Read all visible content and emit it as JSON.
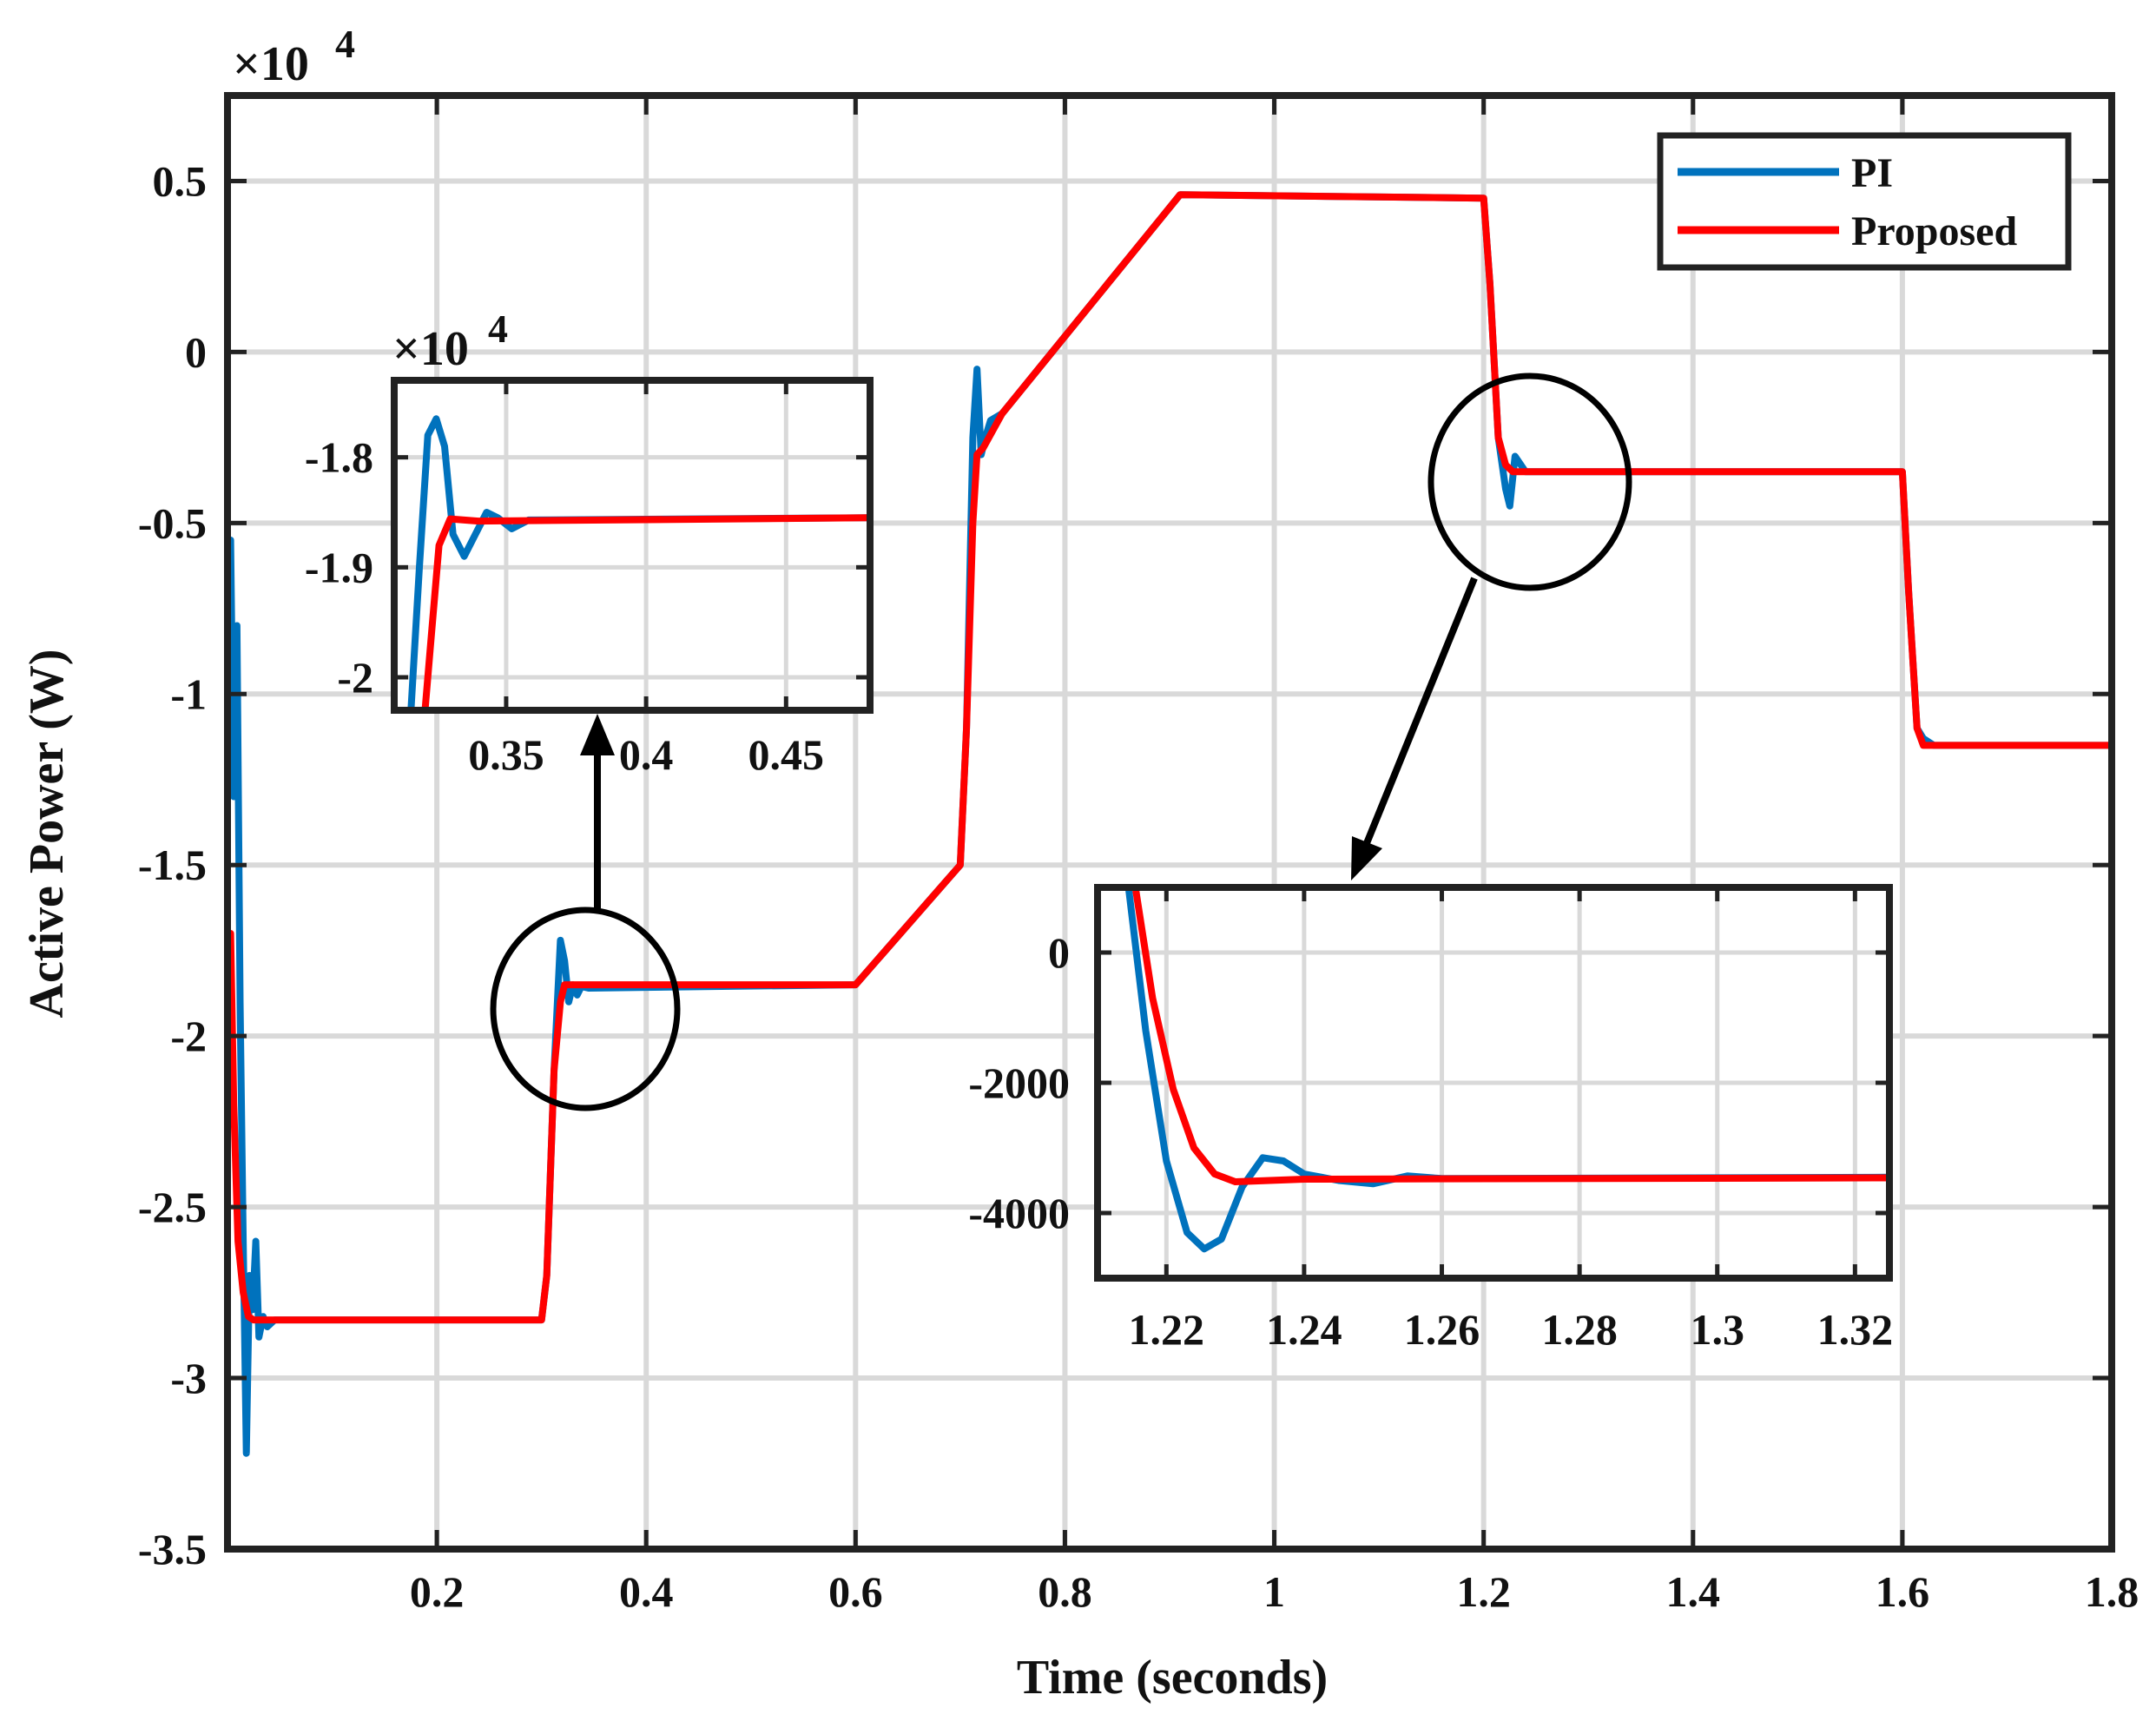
{
  "chart_data": [
    {
      "id": "main",
      "type": "line",
      "xlabel": "Time (seconds)",
      "ylabel": "Active Power (W)",
      "y_multiplier_label": "×10",
      "y_multiplier_exponent": "4",
      "xlim": [
        0.0,
        1.8
      ],
      "ylim": [
        -3.5,
        0.75
      ],
      "xticks": [
        0.2,
        0.4,
        0.6,
        0.8,
        1.0,
        1.2,
        1.4,
        1.6,
        1.8
      ],
      "xtick_labels": [
        "0.2",
        "0.4",
        "0.6",
        "0.8",
        "1",
        "1.2",
        "1.4",
        "1.6",
        "1.8"
      ],
      "yticks": [
        0.5,
        0,
        -0.5,
        -1,
        -1.5,
        -2,
        -2.5,
        -3,
        -3.5
      ],
      "ytick_labels": [
        "0.5",
        "0",
        "-0.5",
        "-1",
        "-1.5",
        "-2",
        "-2.5",
        "-3",
        "-3.5"
      ],
      "grid": true,
      "legend_position": "top-right",
      "series": [
        {
          "name": "PI",
          "color": "#0072BD",
          "points": [
            [
              0.003,
              -0.55
            ],
            [
              0.006,
              -1.3
            ],
            [
              0.009,
              -0.8
            ],
            [
              0.012,
              -1.9
            ],
            [
              0.015,
              -2.6
            ],
            [
              0.018,
              -3.22
            ],
            [
              0.021,
              -2.7
            ],
            [
              0.024,
              -2.8
            ],
            [
              0.027,
              -2.6
            ],
            [
              0.03,
              -2.88
            ],
            [
              0.034,
              -2.82
            ],
            [
              0.038,
              -2.85
            ],
            [
              0.045,
              -2.83
            ],
            [
              0.3,
              -2.83
            ],
            [
              0.305,
              -2.7
            ],
            [
              0.312,
              -2.1
            ],
            [
              0.318,
              -1.72
            ],
            [
              0.322,
              -1.78
            ],
            [
              0.326,
              -1.9
            ],
            [
              0.33,
              -1.85
            ],
            [
              0.334,
              -1.88
            ],
            [
              0.338,
              -1.855
            ],
            [
              0.345,
              -1.86
            ],
            [
              0.6,
              -1.85
            ],
            [
              0.7,
              -1.5
            ],
            [
              0.706,
              -1.1
            ],
            [
              0.712,
              -0.25
            ],
            [
              0.716,
              -0.05
            ],
            [
              0.72,
              -0.3
            ],
            [
              0.724,
              -0.25
            ],
            [
              0.729,
              -0.2
            ],
            [
              0.74,
              -0.18
            ],
            [
              0.91,
              0.46
            ],
            [
              1.2,
              0.45
            ],
            [
              1.206,
              0.2
            ],
            [
              1.214,
              -0.25
            ],
            [
              1.221,
              -0.4
            ],
            [
              1.225,
              -0.45
            ],
            [
              1.23,
              -0.305
            ],
            [
              1.24,
              -0.35
            ],
            [
              1.6,
              -0.35
            ],
            [
              1.606,
              -0.7
            ],
            [
              1.614,
              -1.1
            ],
            [
              1.62,
              -1.13
            ],
            [
              1.63,
              -1.15
            ],
            [
              1.8,
              -1.15
            ]
          ]
        },
        {
          "name": "Proposed",
          "color": "#FF0000",
          "points": [
            [
              0.003,
              -1.7
            ],
            [
              0.006,
              -2.2
            ],
            [
              0.01,
              -2.6
            ],
            [
              0.015,
              -2.75
            ],
            [
              0.02,
              -2.82
            ],
            [
              0.025,
              -2.83
            ],
            [
              0.3,
              -2.83
            ],
            [
              0.305,
              -2.7
            ],
            [
              0.312,
              -2.1
            ],
            [
              0.318,
              -1.9
            ],
            [
              0.322,
              -1.85
            ],
            [
              0.6,
              -1.85
            ],
            [
              0.7,
              -1.5
            ],
            [
              0.706,
              -1.1
            ],
            [
              0.712,
              -0.5
            ],
            [
              0.716,
              -0.3
            ],
            [
              0.722,
              -0.28
            ],
            [
              0.74,
              -0.18
            ],
            [
              0.91,
              0.46
            ],
            [
              1.2,
              0.45
            ],
            [
              1.206,
              0.2
            ],
            [
              1.214,
              -0.25
            ],
            [
              1.221,
              -0.33
            ],
            [
              1.228,
              -0.35
            ],
            [
              1.6,
              -0.35
            ],
            [
              1.606,
              -0.7
            ],
            [
              1.614,
              -1.1
            ],
            [
              1.62,
              -1.15
            ],
            [
              1.8,
              -1.15
            ]
          ]
        }
      ]
    },
    {
      "id": "inset_left",
      "type": "line",
      "y_multiplier_label": "×10",
      "y_multiplier_exponent": "4",
      "xlim": [
        0.31,
        0.48
      ],
      "ylim": [
        -2.03,
        -1.73
      ],
      "xticks": [
        0.35,
        0.4,
        0.45
      ],
      "xtick_labels": [
        "0.35",
        "0.4",
        "0.45"
      ],
      "yticks": [
        -1.8,
        -1.9,
        -2.0
      ],
      "ytick_labels": [
        "-1.8",
        "-1.9",
        "-2"
      ],
      "grid": true,
      "series": [
        {
          "name": "PI",
          "color": "#0072BD",
          "points": [
            [
              0.316,
              -2.03
            ],
            [
              0.319,
              -1.9
            ],
            [
              0.322,
              -1.78
            ],
            [
              0.325,
              -1.765
            ],
            [
              0.328,
              -1.79
            ],
            [
              0.331,
              -1.87
            ],
            [
              0.335,
              -1.89
            ],
            [
              0.339,
              -1.87
            ],
            [
              0.343,
              -1.85
            ],
            [
              0.347,
              -1.855
            ],
            [
              0.352,
              -1.865
            ],
            [
              0.358,
              -1.857
            ],
            [
              0.48,
              -1.855
            ]
          ]
        },
        {
          "name": "Proposed",
          "color": "#FF0000",
          "points": [
            [
              0.321,
              -2.03
            ],
            [
              0.323,
              -1.97
            ],
            [
              0.326,
              -1.88
            ],
            [
              0.33,
              -1.856
            ],
            [
              0.34,
              -1.858
            ],
            [
              0.48,
              -1.855
            ]
          ]
        }
      ]
    },
    {
      "id": "inset_right",
      "type": "line",
      "xlim": [
        1.21,
        1.325
      ],
      "ylim": [
        -5000,
        1000
      ],
      "xticks": [
        1.22,
        1.24,
        1.26,
        1.28,
        1.3,
        1.32
      ],
      "xtick_labels": [
        "1.22",
        "1.24",
        "1.26",
        "1.28",
        "1.3",
        "1.32"
      ],
      "yticks": [
        0,
        -2000,
        -4000
      ],
      "ytick_labels": [
        "0",
        "-2000",
        "-4000"
      ],
      "grid": true,
      "series": [
        {
          "name": "PI",
          "color": "#0072BD",
          "points": [
            [
              1.2145,
              1000
            ],
            [
              1.217,
              -1200
            ],
            [
              1.22,
              -3200
            ],
            [
              1.223,
              -4300
            ],
            [
              1.2255,
              -4550
            ],
            [
              1.228,
              -4400
            ],
            [
              1.231,
              -3600
            ],
            [
              1.234,
              -3150
            ],
            [
              1.237,
              -3200
            ],
            [
              1.24,
              -3400
            ],
            [
              1.245,
              -3500
            ],
            [
              1.25,
              -3550
            ],
            [
              1.255,
              -3430
            ],
            [
              1.26,
              -3470
            ],
            [
              1.325,
              -3450
            ]
          ]
        },
        {
          "name": "Proposed",
          "color": "#FF0000",
          "points": [
            [
              1.2155,
              1000
            ],
            [
              1.218,
              -700
            ],
            [
              1.221,
              -2100
            ],
            [
              1.224,
              -3000
            ],
            [
              1.227,
              -3400
            ],
            [
              1.23,
              -3520
            ],
            [
              1.235,
              -3500
            ],
            [
              1.24,
              -3480
            ],
            [
              1.325,
              -3460
            ]
          ]
        }
      ]
    }
  ]
}
